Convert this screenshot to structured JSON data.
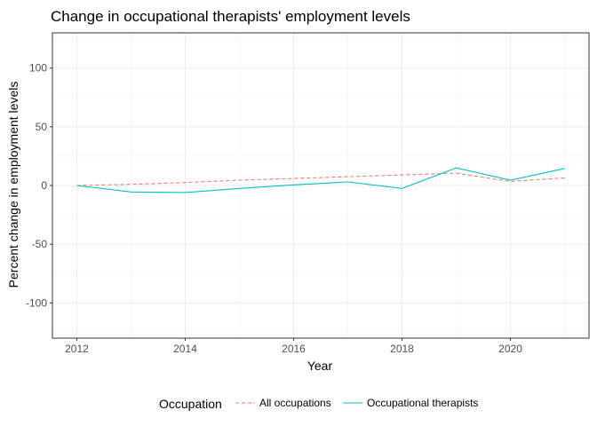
{
  "chart_data": {
    "type": "line",
    "title": "Change in occupational therapists' employment levels",
    "xlabel": "Year",
    "ylabel": "Percent change in employment levels",
    "xlim": [
      2011.55,
      2021.45
    ],
    "ylim": [
      -130,
      130
    ],
    "x_ticks": [
      2012,
      2014,
      2016,
      2018,
      2020
    ],
    "x_tick_labels": [
      "2012",
      "2014",
      "2016",
      "2018",
      "2020"
    ],
    "y_ticks": [
      -100,
      -50,
      0,
      50,
      100
    ],
    "y_tick_labels": [
      "-100",
      "-50",
      "0",
      "50",
      "100"
    ],
    "x_minor_ticks": [
      2013,
      2015,
      2017,
      2019,
      2021
    ],
    "y_minor_ticks": [
      -125,
      -75,
      -25,
      25,
      75,
      125
    ],
    "grid": true,
    "legend": {
      "title": "Occupation",
      "position": "bottom"
    },
    "series": [
      {
        "name": "All occupations",
        "color": "#F8766D",
        "linetype": "dashed",
        "x": [
          2012,
          2013,
          2014,
          2015,
          2016,
          2017,
          2018,
          2019,
          2020,
          2021
        ],
        "y": [
          0,
          1,
          2.5,
          4.5,
          6,
          7.5,
          9,
          10.5,
          3.5,
          6.5
        ]
      },
      {
        "name": "Occupational therapists",
        "color": "#00BFC4",
        "linetype": "solid",
        "x": [
          2012,
          2013,
          2014,
          2015,
          2016,
          2017,
          2018,
          2019,
          2020,
          2021
        ],
        "y": [
          0,
          -5.5,
          -6,
          -2.5,
          0.5,
          3,
          -2.5,
          15,
          4.5,
          14.5
        ]
      }
    ]
  }
}
